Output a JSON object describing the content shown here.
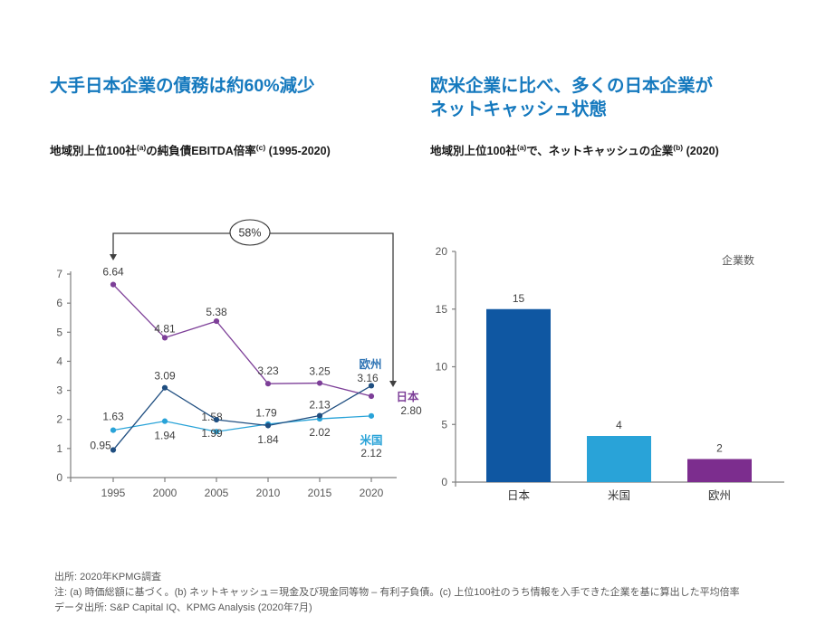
{
  "colors": {
    "heading_blue": "#1579be",
    "japan_purple": "#7d3f98",
    "europe_navy": "#1f4e80",
    "europe_label_blue": "#2e74b5",
    "us_lightblue": "#29a3d8",
    "bar_japan": "#0f57a2",
    "bar_us": "#29a3d8",
    "bar_europe": "#7c2d8e",
    "data_label_gray": "#404040",
    "axis_gray": "#7f7f7f",
    "tick_label_gray": "#595959",
    "annotation_dark": "#404040"
  },
  "left_panel": {
    "title": "大手日本企業の債務は約60%減少",
    "subtitle": {
      "pre": "地域別上位100社",
      "sup1": "(a)",
      "mid": "の純負債EBITDA倍率",
      "sup2": "(c)",
      "post": " (1995-2020)"
    }
  },
  "right_panel": {
    "title_line1": "欧米企業に比べ、多くの日本企業が",
    "title_line2": "ネットキャッシュ状態",
    "subtitle": {
      "pre": "地域別上位100社",
      "sup1": "(a)",
      "mid": "で、ネットキャッシュの企業",
      "sup2": "(b)",
      "post": " (2020)"
    }
  },
  "chart_data": [
    {
      "type": "line",
      "title": "地域別上位100社の純負債EBITDA倍率 (1995-2020)",
      "x": [
        1995,
        2000,
        2005,
        2010,
        2015,
        2020
      ],
      "series": [
        {
          "name": "日本",
          "color": "#7d3f98",
          "label_color": "#7d3f98",
          "values": [
            6.64,
            4.81,
            5.38,
            3.23,
            3.25,
            2.8
          ],
          "value_labels": [
            "6.64",
            "4.81",
            "5.38",
            "3.23",
            "3.25",
            "2.80"
          ]
        },
        {
          "name": "欧州",
          "color": "#1f4e80",
          "label_color": "#2e74b5",
          "values": [
            0.95,
            3.09,
            1.99,
            1.79,
            2.13,
            3.16
          ],
          "value_labels": [
            "0.95",
            "3.09",
            "1.99",
            "1.79",
            "2.13",
            "3.16"
          ]
        },
        {
          "name": "米国",
          "color": "#29a3d8",
          "label_color": "#29a3d8",
          "values": [
            1.63,
            1.94,
            1.58,
            1.84,
            2.02,
            2.12
          ],
          "value_labels": [
            "1.63",
            "1.94",
            "1.58",
            "1.84",
            "2.02",
            "2.12"
          ]
        }
      ],
      "ylim": [
        0,
        7
      ],
      "yticks": [
        0,
        1,
        2,
        3,
        4,
        5,
        6,
        7
      ],
      "grid": false,
      "legend_position": "line-end-right",
      "annotation": {
        "label": "58%"
      }
    },
    {
      "type": "bar",
      "categories": [
        "日本",
        "米国",
        "欧州"
      ],
      "values": [
        15,
        4,
        2
      ],
      "value_labels": [
        "15",
        "4",
        "2"
      ],
      "bar_colors": [
        "#0f57a2",
        "#29a3d8",
        "#7c2d8e"
      ],
      "ylabel": "企業数",
      "ylim": [
        0,
        20
      ],
      "yticks": [
        0,
        5,
        10,
        15,
        20
      ],
      "grid": false
    }
  ],
  "footer": {
    "line1": "出所: 2020年KPMG調査",
    "line2": "注: (a) 時価総額に基づく。(b) ネットキャッシュ＝現金及び現金同等物 – 有利子負債。(c) 上位100社のうち情報を入手できた企業を基に算出した平均倍率",
    "line3": "データ出所: S&P Capital IQ、KPMG Analysis (2020年7月)"
  }
}
